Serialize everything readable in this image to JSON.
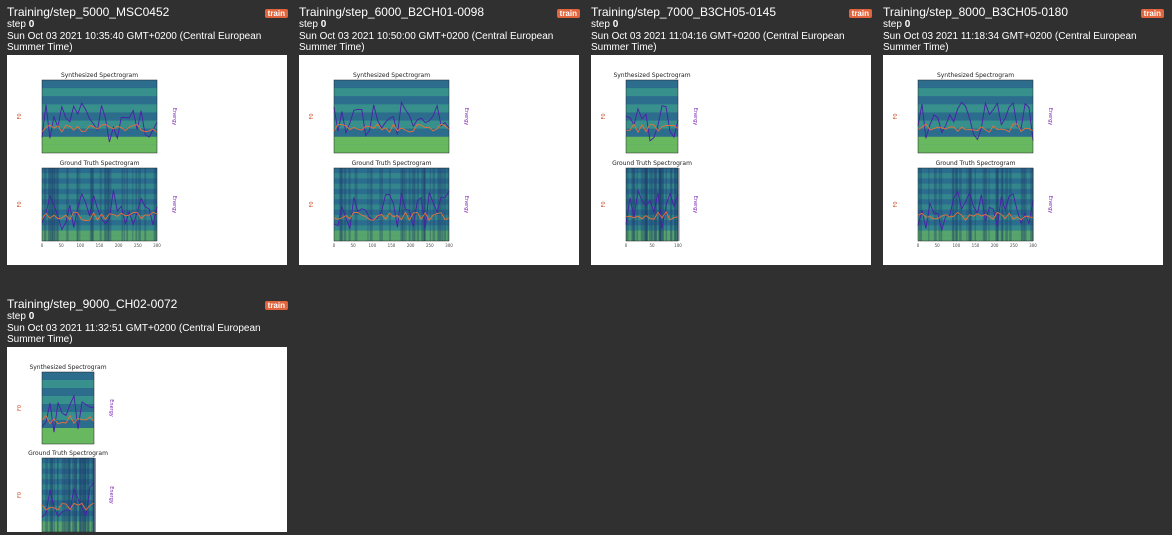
{
  "cards": [
    {
      "title": "Training/step_5000_MSC0452",
      "badge": "train",
      "step_label": "step",
      "step_value": "0",
      "timestamp": "Sun Oct 03 2021 10:35:40 GMT+0200 (Central European Summer Time)",
      "plot": {
        "top_title": "Synthesized Spectrogram",
        "bottom_title": "Ground Truth Spectrogram",
        "left_label": "F0",
        "right_label": "Energy"
      }
    },
    {
      "title": "Training/step_6000_B2CH01-0098",
      "badge": "train",
      "step_label": "step",
      "step_value": "0",
      "timestamp": "Sun Oct 03 2021 10:50:00 GMT+0200 (Central European Summer Time)",
      "plot": {
        "top_title": "Synthesized Spectrogram",
        "bottom_title": "Ground Truth Spectrogram",
        "left_label": "F0",
        "right_label": "Energy"
      }
    },
    {
      "title": "Training/step_7000_B3CH05-0145",
      "badge": "train",
      "step_label": "step",
      "step_value": "0",
      "timestamp": "Sun Oct 03 2021 11:04:16 GMT+0200 (Central European Summer Time)",
      "plot": {
        "top_title": "Synthesized Spectrogram",
        "bottom_title": "Ground Truth Spectrogram",
        "left_label": "F0",
        "right_label": "Energy"
      }
    },
    {
      "title": "Training/step_8000_B3CH05-0180",
      "badge": "train",
      "step_label": "step",
      "step_value": "0",
      "timestamp": "Sun Oct 03 2021 11:18:34 GMT+0200 (Central European Summer Time)",
      "plot": {
        "top_title": "Synthesized Spectrogram",
        "bottom_title": "Ground Truth Spectrogram",
        "left_label": "F0",
        "right_label": "Energy"
      }
    },
    {
      "title": "Training/step_9000_CH02-0072",
      "badge": "train",
      "step_label": "step",
      "step_value": "0",
      "timestamp": "Sun Oct 03 2021 11:32:51 GMT+0200 (Central European Summer Time)",
      "plot": {
        "top_title": "Synthesized Spectrogram",
        "bottom_title": "Ground Truth Spectrogram",
        "left_label": "F0",
        "right_label": "Energy"
      }
    }
  ],
  "colors": {
    "background": "#303030",
    "badge": "#e2643c",
    "spec_dark": "#2c6e8e",
    "spec_mid": "#3b9c8a",
    "spec_light": "#7cd250",
    "f0_line": "#e8703a",
    "energy_line": "#4b1fa8"
  }
}
